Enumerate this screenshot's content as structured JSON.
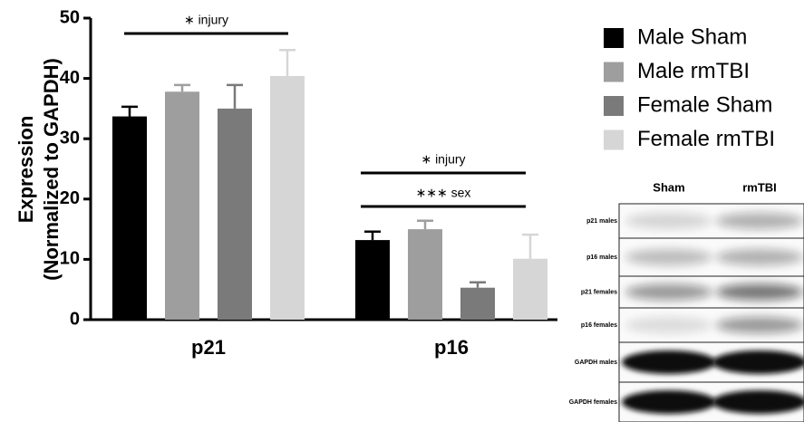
{
  "chart_data": {
    "type": "bar",
    "ylabel": [
      "Expression",
      "(Normalized to GAPDH)"
    ],
    "categories": [
      "p21",
      "p16"
    ],
    "series": [
      {
        "name": "Male Sham",
        "color": "#000000",
        "values": [
          33.7,
          13.2
        ],
        "errors": [
          1.6,
          1.4
        ]
      },
      {
        "name": "Male rmTBI",
        "color": "#9e9e9e",
        "values": [
          37.8,
          15.0
        ],
        "errors": [
          1.1,
          1.4
        ]
      },
      {
        "name": "Female Sham",
        "color": "#7a7a7a",
        "values": [
          35.0,
          5.3
        ],
        "errors": [
          3.9,
          0.9
        ]
      },
      {
        "name": "Female rmTBI",
        "color": "#d6d6d6",
        "values": [
          40.4,
          10.1
        ],
        "errors": [
          4.3,
          4.0
        ]
      }
    ],
    "ylim": [
      0,
      50
    ],
    "yticks": [
      0,
      10,
      20,
      30,
      40,
      50
    ],
    "annotations": [
      "∗ injury",
      "∗ injury",
      "∗∗∗ sex"
    ]
  },
  "blot": {
    "columns": [
      "Sham",
      "rmTBI"
    ],
    "rows": [
      "p21 males",
      "p16 males",
      "p21 females",
      "p16 females",
      "GAPDH males",
      "GAPDH females"
    ]
  }
}
